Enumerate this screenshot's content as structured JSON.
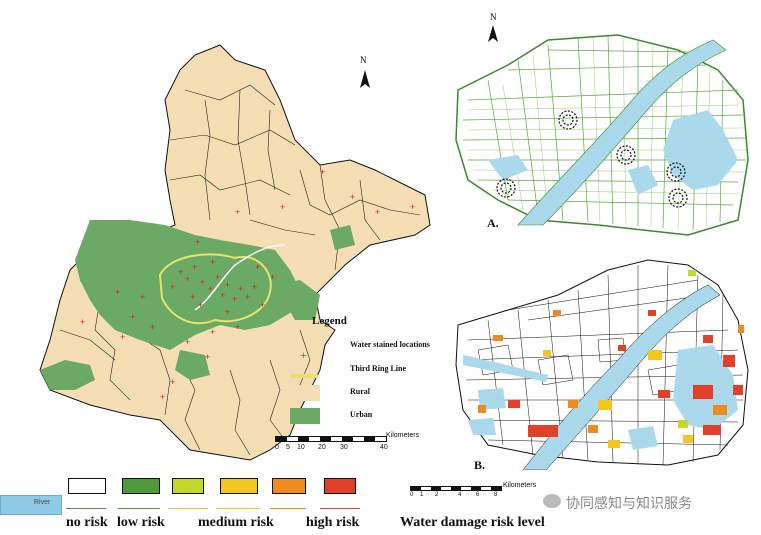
{
  "left_map": {
    "north": "N",
    "legend": {
      "title": "Legend",
      "items": [
        {
          "label": "Water stained locations",
          "symbol": "red-plus"
        },
        {
          "label": "Third Ring Line",
          "symbol": "yellow-line"
        },
        {
          "label": "Rural",
          "color": "#f5deb3"
        },
        {
          "label": "Urban",
          "color": "#6aaa64"
        }
      ]
    },
    "scale": {
      "ticks": [
        "0",
        "5",
        "10",
        "20",
        "30",
        "40"
      ],
      "unit": "Kilometers"
    }
  },
  "panel_a": {
    "label": "A.",
    "north": "N"
  },
  "panel_b": {
    "label": "B.",
    "scale_unit": "Kilometers",
    "scale_ticks": [
      "0",
      "1",
      "2",
      "4",
      "6",
      "8"
    ]
  },
  "risk_legend": {
    "title": "Water damage risk level",
    "water_label": "River",
    "boxes": [
      {
        "color": "#ffffff"
      },
      {
        "color": "#4e9a3a"
      },
      {
        "color": "#c3d82a"
      },
      {
        "color": "#f2c61f"
      },
      {
        "color": "#ef8a1f"
      },
      {
        "color": "#e3402a"
      }
    ],
    "labels": [
      "no risk",
      "low risk",
      "medium risk",
      "high risk"
    ]
  },
  "watermark": {
    "text": "协同感知与知识服务"
  }
}
